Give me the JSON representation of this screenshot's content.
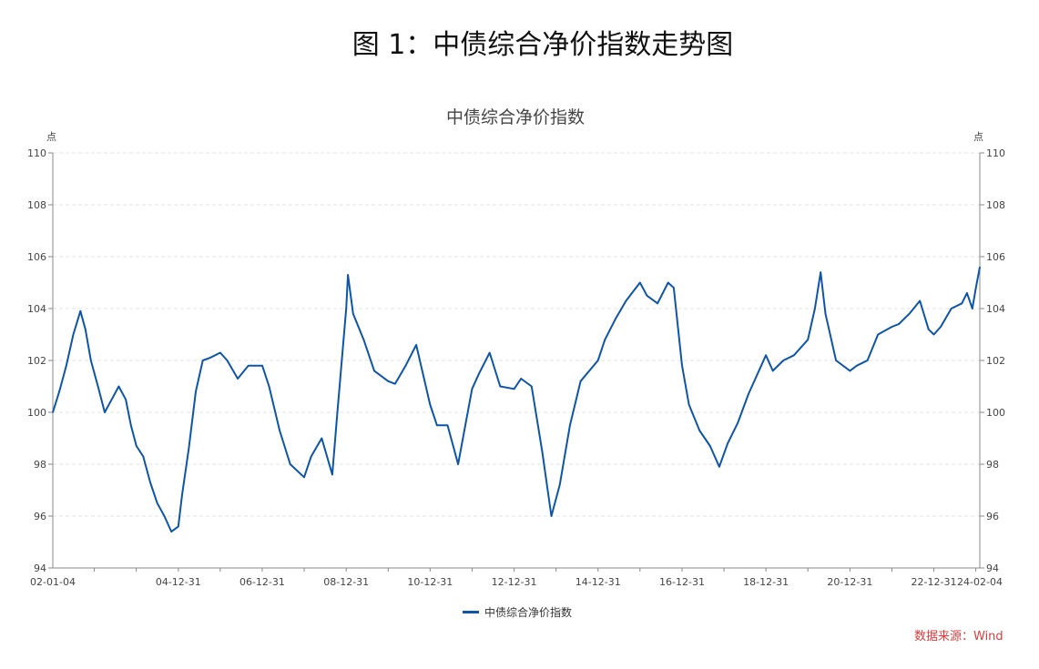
{
  "figure_title": "图 1：中债综合净价指数走势图",
  "source": "数据来源：Wind",
  "colors": {
    "line": "#0d55a6",
    "source": "#e03a3a",
    "grid": "#e3e3e3",
    "axis": "#888888"
  },
  "chart_data": {
    "type": "line",
    "title": "中债综合净价指数",
    "ylabel_left": "点",
    "ylabel_right": "点",
    "ylim": [
      94,
      110
    ],
    "yticks": [
      94,
      96,
      98,
      100,
      102,
      104,
      106,
      108,
      110
    ],
    "xlim": [
      "2002-01-04",
      "2024-02-04"
    ],
    "xtick_labels": [
      "02-01-04",
      "04-12-31",
      "06-12-31",
      "08-12-31",
      "10-12-31",
      "12-12-31",
      "14-12-31",
      "16-12-31",
      "18-12-31",
      "20-12-31",
      "22-12-31",
      "24-02-04"
    ],
    "xtick_dates": [
      "2002-01-04",
      "2004-12-31",
      "2006-12-31",
      "2008-12-31",
      "2010-12-31",
      "2012-12-31",
      "2014-12-31",
      "2016-12-31",
      "2018-12-31",
      "2020-12-31",
      "2022-12-31",
      "2024-02-04"
    ],
    "grid": true,
    "legend_position": "bottom-center",
    "series": [
      {
        "name": "中债综合净价指数",
        "points": [
          [
            "2002-01-04",
            100.0
          ],
          [
            "2002-03-01",
            100.8
          ],
          [
            "2002-05-01",
            101.8
          ],
          [
            "2002-07-01",
            103.0
          ],
          [
            "2002-09-01",
            103.9
          ],
          [
            "2002-10-15",
            103.2
          ],
          [
            "2002-12-01",
            102.0
          ],
          [
            "2003-02-01",
            101.0
          ],
          [
            "2003-04-01",
            100.0
          ],
          [
            "2003-06-01",
            100.5
          ],
          [
            "2003-08-01",
            101.0
          ],
          [
            "2003-10-01",
            100.5
          ],
          [
            "2003-11-15",
            99.5
          ],
          [
            "2004-01-01",
            98.7
          ],
          [
            "2004-03-01",
            98.3
          ],
          [
            "2004-05-01",
            97.3
          ],
          [
            "2004-07-01",
            96.5
          ],
          [
            "2004-09-01",
            96.0
          ],
          [
            "2004-11-01",
            95.4
          ],
          [
            "2004-12-31",
            95.6
          ],
          [
            "2005-02-01",
            96.8
          ],
          [
            "2005-04-01",
            98.6
          ],
          [
            "2005-06-01",
            100.8
          ],
          [
            "2005-08-01",
            102.0
          ],
          [
            "2005-10-01",
            102.1
          ],
          [
            "2005-12-31",
            102.3
          ],
          [
            "2006-03-01",
            102.0
          ],
          [
            "2006-06-01",
            101.3
          ],
          [
            "2006-09-01",
            101.8
          ],
          [
            "2006-12-31",
            101.8
          ],
          [
            "2007-03-01",
            101.0
          ],
          [
            "2007-06-01",
            99.3
          ],
          [
            "2007-09-01",
            98.0
          ],
          [
            "2007-12-31",
            97.5
          ],
          [
            "2008-03-01",
            98.3
          ],
          [
            "2008-06-01",
            99.0
          ],
          [
            "2008-09-01",
            97.6
          ],
          [
            "2008-10-15",
            100.0
          ],
          [
            "2008-12-31",
            104.0
          ],
          [
            "2009-01-15",
            105.3
          ],
          [
            "2009-03-01",
            103.8
          ],
          [
            "2009-06-01",
            102.8
          ],
          [
            "2009-09-01",
            101.6
          ],
          [
            "2009-12-31",
            101.2
          ],
          [
            "2010-03-01",
            101.1
          ],
          [
            "2010-06-01",
            101.8
          ],
          [
            "2010-09-01",
            102.6
          ],
          [
            "2010-12-31",
            100.3
          ],
          [
            "2011-03-01",
            99.5
          ],
          [
            "2011-06-01",
            99.5
          ],
          [
            "2011-09-01",
            98.0
          ],
          [
            "2011-12-31",
            100.9
          ],
          [
            "2012-03-01",
            101.5
          ],
          [
            "2012-06-01",
            102.3
          ],
          [
            "2012-09-01",
            101.0
          ],
          [
            "2012-12-31",
            100.9
          ],
          [
            "2013-03-01",
            101.3
          ],
          [
            "2013-06-01",
            101.0
          ],
          [
            "2013-09-01",
            98.5
          ],
          [
            "2013-11-20",
            96.0
          ],
          [
            "2014-02-01",
            97.2
          ],
          [
            "2014-05-01",
            99.5
          ],
          [
            "2014-08-01",
            101.2
          ],
          [
            "2014-12-31",
            102.0
          ],
          [
            "2015-03-01",
            102.8
          ],
          [
            "2015-06-01",
            103.6
          ],
          [
            "2015-09-01",
            104.3
          ],
          [
            "2015-12-31",
            105.0
          ],
          [
            "2016-03-01",
            104.5
          ],
          [
            "2016-06-01",
            104.2
          ],
          [
            "2016-09-01",
            105.0
          ],
          [
            "2016-10-20",
            104.8
          ],
          [
            "2016-12-31",
            101.8
          ],
          [
            "2017-03-01",
            100.3
          ],
          [
            "2017-06-01",
            99.3
          ],
          [
            "2017-09-01",
            98.7
          ],
          [
            "2017-11-20",
            97.9
          ],
          [
            "2018-02-01",
            98.8
          ],
          [
            "2018-05-01",
            99.6
          ],
          [
            "2018-08-01",
            100.7
          ],
          [
            "2018-12-31",
            102.2
          ],
          [
            "2019-03-01",
            101.6
          ],
          [
            "2019-06-01",
            102.0
          ],
          [
            "2019-09-01",
            102.2
          ],
          [
            "2019-12-31",
            102.8
          ],
          [
            "2020-03-01",
            104.0
          ],
          [
            "2020-04-20",
            105.4
          ],
          [
            "2020-06-01",
            103.8
          ],
          [
            "2020-09-01",
            102.0
          ],
          [
            "2020-12-31",
            101.6
          ],
          [
            "2021-03-01",
            101.8
          ],
          [
            "2021-06-01",
            102.0
          ],
          [
            "2021-09-01",
            103.0
          ],
          [
            "2021-12-31",
            103.3
          ],
          [
            "2022-03-01",
            103.4
          ],
          [
            "2022-06-01",
            103.8
          ],
          [
            "2022-09-01",
            104.3
          ],
          [
            "2022-11-15",
            103.2
          ],
          [
            "2022-12-31",
            103.0
          ],
          [
            "2023-03-01",
            103.3
          ],
          [
            "2023-06-01",
            104.0
          ],
          [
            "2023-09-01",
            104.2
          ],
          [
            "2023-10-15",
            104.6
          ],
          [
            "2023-12-01",
            104.0
          ],
          [
            "2024-01-01",
            104.8
          ],
          [
            "2024-02-04",
            105.6
          ]
        ]
      }
    ]
  }
}
